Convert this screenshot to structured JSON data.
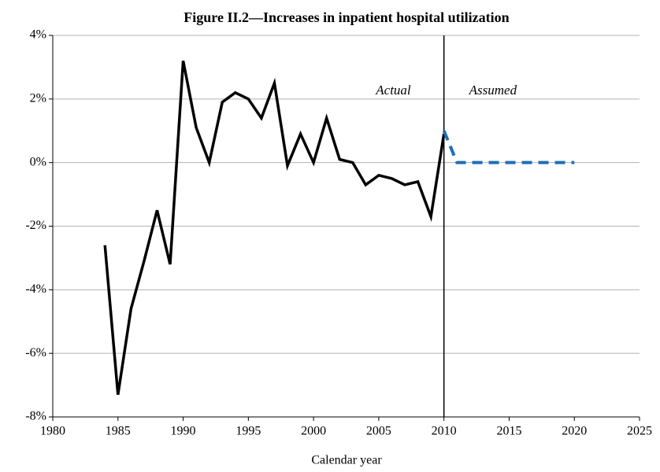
{
  "chart_data": {
    "type": "line",
    "title": "Figure II.2—Increases in inpatient hospital utilization",
    "xlabel": "Calendar year",
    "series": [
      {
        "name": "Actual",
        "color": "#000000",
        "dashed": false,
        "x": [
          1984,
          1985,
          1986,
          1987,
          1988,
          1989,
          1990,
          1991,
          1992,
          1993,
          1994,
          1995,
          1996,
          1997,
          1998,
          1999,
          2000,
          2001,
          2002,
          2003,
          2004,
          2005,
          2006,
          2007,
          2008,
          2009,
          2010
        ],
        "values": [
          -2.6,
          -7.3,
          -4.6,
          -3.1,
          -1.5,
          -3.2,
          3.2,
          1.1,
          0.0,
          1.9,
          2.2,
          2.0,
          1.4,
          2.5,
          -0.1,
          0.9,
          0.0,
          1.4,
          0.1,
          0.0,
          -0.7,
          -0.4,
          -0.5,
          -0.7,
          -0.6,
          -1.7,
          0.9
        ]
      },
      {
        "name": "Assumed",
        "color": "#1f6fb4",
        "dashed": true,
        "x": [
          2010,
          2011,
          2012,
          2013,
          2014,
          2015,
          2016,
          2017,
          2018,
          2019,
          2020
        ],
        "values": [
          1.0,
          0.0,
          0.0,
          0.0,
          0.0,
          0.0,
          0.0,
          0.0,
          0.0,
          0.0,
          0.0
        ]
      }
    ],
    "vline": 2010,
    "xlim": [
      1980,
      2025
    ],
    "xticks": [
      1980,
      1985,
      1990,
      1995,
      2000,
      2005,
      2010,
      2015,
      2020,
      2025
    ],
    "ylim": [
      -8,
      4
    ],
    "yticks": [
      {
        "value": -8,
        "label": "-8%"
      },
      {
        "value": -6,
        "label": "-6%"
      },
      {
        "value": -4,
        "label": "-4%"
      },
      {
        "value": -2,
        "label": "-2%"
      },
      {
        "value": 0,
        "label": "0%"
      },
      {
        "value": 2,
        "label": "2%"
      },
      {
        "value": 4,
        "label": "4%"
      }
    ],
    "grid": true
  }
}
